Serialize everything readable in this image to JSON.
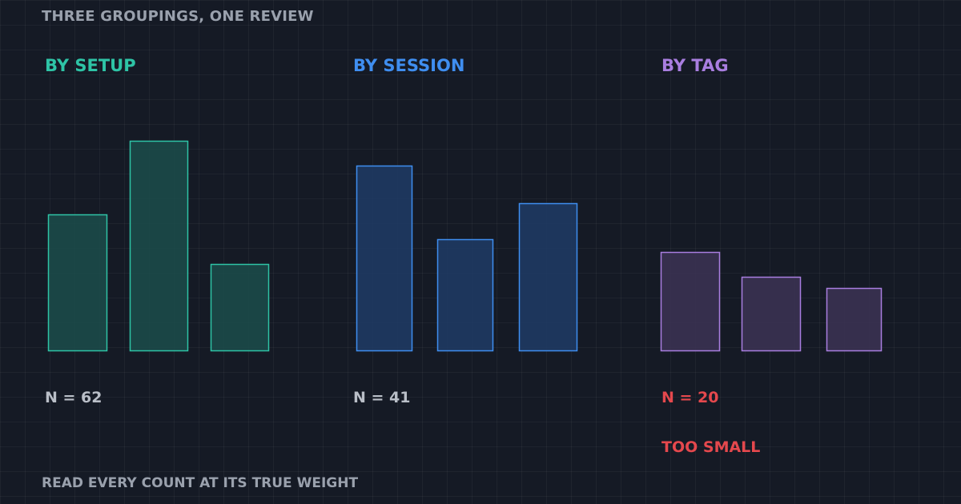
{
  "header": {
    "title": "THREE GROUPINGS, ONE REVIEW"
  },
  "footer": {
    "text": "READ EVERY COUNT AT ITS TRUE WEIGHT"
  },
  "groups": [
    {
      "title": "BY SETUP",
      "count_label": "N = 62",
      "warning": "",
      "color": "#2ec4a6",
      "fill": "#1b4a49",
      "count_color": "#b9bec7"
    },
    {
      "title": "BY SESSION",
      "count_label": "N = 41",
      "warning": "",
      "color": "#3f8ef0",
      "fill": "#1e3a63",
      "count_color": "#b9bec7"
    },
    {
      "title": "BY TAG",
      "count_label": "N = 20",
      "warning": "TOO SMALL",
      "color": "#a97ee0",
      "fill": "#3a3252",
      "count_color": "#e5484d"
    }
  ],
  "chart_data": [
    {
      "type": "bar",
      "title": "BY SETUP",
      "values": [
        170,
        262,
        108
      ],
      "ylim": [
        0,
        300
      ],
      "grid": true
    },
    {
      "type": "bar",
      "title": "BY SESSION",
      "values": [
        231,
        139,
        184
      ],
      "ylim": [
        0,
        300
      ],
      "grid": true
    },
    {
      "type": "bar",
      "title": "BY TAG",
      "values": [
        123,
        92,
        78
      ],
      "ylim": [
        0,
        300
      ],
      "grid": true
    }
  ]
}
